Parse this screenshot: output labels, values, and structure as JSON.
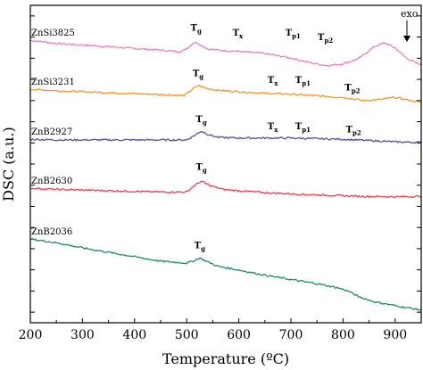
{
  "chart_data": {
    "type": "line",
    "xlabel": "Temperature (ºC)",
    "ylabel": "DSC (a.u.)",
    "xlim": [
      200,
      950
    ],
    "ylim": [
      0,
      100
    ],
    "xticks": [
      200,
      300,
      400,
      500,
      600,
      700,
      800,
      900
    ],
    "ytick_count": 15,
    "grid": false,
    "exo_label": "exo",
    "series": [
      {
        "name": "ZnSi3825",
        "color": "#e97fb8",
        "points": [
          [
            200,
            89.0
          ],
          [
            250,
            88.0
          ],
          [
            300,
            87.5
          ],
          [
            350,
            87.0
          ],
          [
            400,
            86.4
          ],
          [
            450,
            85.9
          ],
          [
            490,
            85.4
          ],
          [
            505,
            87.0
          ],
          [
            515,
            88.5
          ],
          [
            525,
            87.7
          ],
          [
            540,
            86.3
          ],
          [
            560,
            85.9
          ],
          [
            600,
            85.5
          ],
          [
            650,
            84.8
          ],
          [
            700,
            83.4
          ],
          [
            740,
            81.8
          ],
          [
            770,
            81.0
          ],
          [
            800,
            81.6
          ],
          [
            830,
            83.2
          ],
          [
            860,
            87.0
          ],
          [
            880,
            88.2
          ],
          [
            900,
            86.6
          ],
          [
            920,
            83.6
          ],
          [
            940,
            81.8
          ],
          [
            950,
            81.4
          ]
        ],
        "annotations": [
          {
            "x": 518,
            "y": 92.0,
            "main": "T",
            "sub": "g"
          },
          {
            "x": 598,
            "y": 90.5,
            "main": "T",
            "sub": "x"
          },
          {
            "x": 704,
            "y": 90.5,
            "main": "T",
            "sub": "p1"
          },
          {
            "x": 766,
            "y": 89.0,
            "main": "T",
            "sub": "p2"
          }
        ]
      },
      {
        "name": "ZnSi3231",
        "color": "#f0962e",
        "points": [
          [
            200,
            73.6
          ],
          [
            250,
            73.1
          ],
          [
            300,
            72.8
          ],
          [
            350,
            72.5
          ],
          [
            400,
            72.2
          ],
          [
            450,
            71.9
          ],
          [
            495,
            71.6
          ],
          [
            510,
            73.4
          ],
          [
            522,
            74.8
          ],
          [
            535,
            74.0
          ],
          [
            560,
            73.2
          ],
          [
            600,
            72.8
          ],
          [
            650,
            72.3
          ],
          [
            700,
            72.0
          ],
          [
            750,
            71.5
          ],
          [
            800,
            71.0
          ],
          [
            840,
            70.0
          ],
          [
            870,
            70.3
          ],
          [
            900,
            71.0
          ],
          [
            930,
            70.0
          ],
          [
            950,
            69.4
          ]
        ],
        "annotations": [
          {
            "x": 522,
            "y": 77.6,
            "main": "T",
            "sub": "g"
          },
          {
            "x": 665,
            "y": 75.5,
            "main": "T",
            "sub": "x"
          },
          {
            "x": 723,
            "y": 75.5,
            "main": "T",
            "sub": "p1"
          },
          {
            "x": 818,
            "y": 73.2,
            "main": "T",
            "sub": "p2"
          }
        ]
      },
      {
        "name": "ZnB2927",
        "color": "#5b4d9c",
        "points": [
          [
            200,
            57.8
          ],
          [
            250,
            57.6
          ],
          [
            300,
            57.6
          ],
          [
            350,
            57.6
          ],
          [
            400,
            57.6
          ],
          [
            450,
            57.6
          ],
          [
            500,
            57.6
          ],
          [
            515,
            59.0
          ],
          [
            528,
            60.4
          ],
          [
            540,
            59.4
          ],
          [
            560,
            58.4
          ],
          [
            600,
            58.2
          ],
          [
            650,
            58.2
          ],
          [
            700,
            58.2
          ],
          [
            750,
            58.0
          ],
          [
            800,
            57.8
          ],
          [
            850,
            57.4
          ],
          [
            900,
            57.0
          ],
          [
            950,
            56.8
          ]
        ],
        "annotations": [
          {
            "x": 528,
            "y": 63.2,
            "main": "T",
            "sub": "g"
          },
          {
            "x": 665,
            "y": 61.0,
            "main": "T",
            "sub": "x"
          },
          {
            "x": 723,
            "y": 61.0,
            "main": "T",
            "sub": "p1"
          },
          {
            "x": 820,
            "y": 60.0,
            "main": "T",
            "sub": "p2"
          }
        ]
      },
      {
        "name": "ZnB2630",
        "color": "#e8424f",
        "points": [
          [
            200,
            42.4
          ],
          [
            250,
            42.0
          ],
          [
            300,
            41.8
          ],
          [
            350,
            41.6
          ],
          [
            400,
            41.4
          ],
          [
            450,
            41.2
          ],
          [
            500,
            41.2
          ],
          [
            515,
            43.2
          ],
          [
            528,
            44.6
          ],
          [
            545,
            43.2
          ],
          [
            570,
            42.0
          ],
          [
            600,
            41.6
          ],
          [
            650,
            41.0
          ],
          [
            700,
            40.6
          ],
          [
            750,
            40.3
          ],
          [
            800,
            40.0
          ],
          [
            850,
            39.8
          ],
          [
            900,
            39.7
          ],
          [
            950,
            39.8
          ]
        ],
        "annotations": [
          {
            "x": 528,
            "y": 48.2,
            "main": "T",
            "sub": "g"
          }
        ]
      },
      {
        "name": "ZnB2036",
        "color": "#1f8a74",
        "points": [
          [
            200,
            26.4
          ],
          [
            250,
            25.2
          ],
          [
            300,
            23.6
          ],
          [
            350,
            22.2
          ],
          [
            400,
            20.8
          ],
          [
            450,
            19.4
          ],
          [
            500,
            18.8
          ],
          [
            515,
            19.6
          ],
          [
            525,
            20.4
          ],
          [
            540,
            19.2
          ],
          [
            560,
            17.8
          ],
          [
            600,
            16.6
          ],
          [
            650,
            15.0
          ],
          [
            700,
            13.6
          ],
          [
            750,
            12.3
          ],
          [
            790,
            11.0
          ],
          [
            810,
            10.0
          ],
          [
            830,
            8.2
          ],
          [
            860,
            6.6
          ],
          [
            900,
            5.4
          ],
          [
            950,
            4.0
          ]
        ],
        "annotations": [
          {
            "x": 525,
            "y": 23.4,
            "main": "T",
            "sub": "g"
          }
        ]
      }
    ]
  }
}
